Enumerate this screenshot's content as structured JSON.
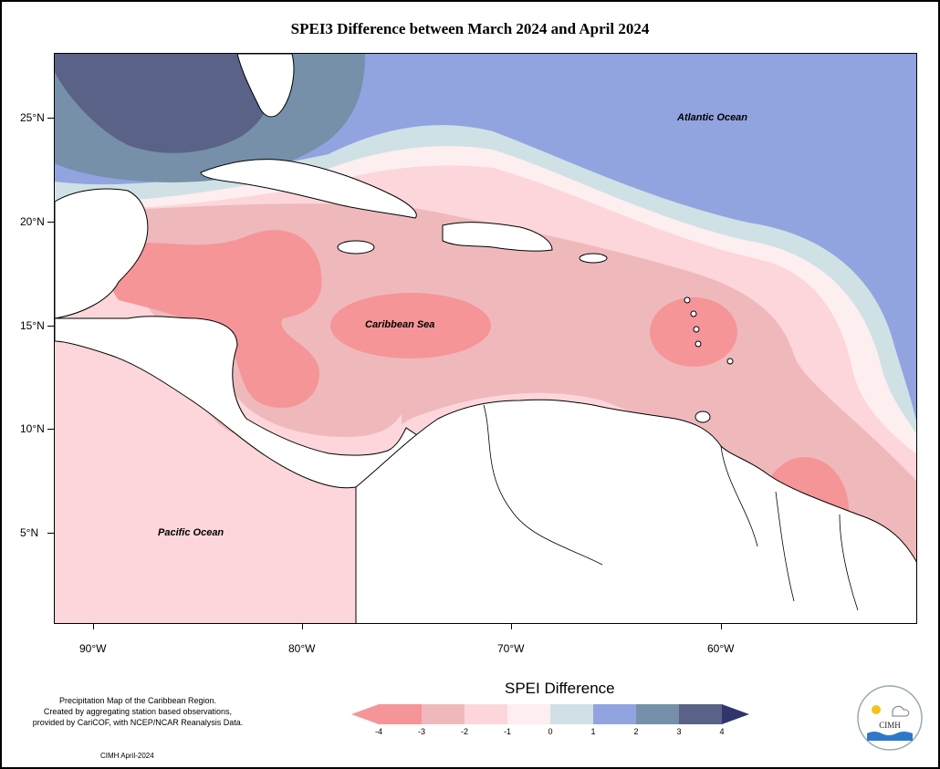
{
  "title": "SPEI3 Difference between March 2024 and April 2024",
  "latitude_labels": [
    "25°N",
    "20°N",
    "15°N",
    "10°N",
    "5°N"
  ],
  "longitude_labels": [
    "90°W",
    "80°W",
    "70°W",
    "60°W"
  ],
  "map_labels": {
    "atlantic": "Atlantic Ocean",
    "caribbean": "Caribbean Sea",
    "pacific": "Pacific Ocean"
  },
  "credit_lines": [
    "Precipitation Map of the Caribbean Region.",
    "Created by aggregating station based observations,",
    "provided by CariCOF, with NCEP/NCAR Reanalysis Data."
  ],
  "date_note": "CIMH April-2024",
  "legend": {
    "title": "SPEI Difference",
    "ticks": [
      "-4",
      "-3",
      "-2",
      "-1",
      "0",
      "1",
      "2",
      "3",
      "4"
    ],
    "bins": [
      {
        "from": -4,
        "to": -3,
        "color": "#f59597"
      },
      {
        "from": -3,
        "to": -2,
        "color": "#efb9bc"
      },
      {
        "from": -2,
        "to": -1,
        "color": "#fcd6da"
      },
      {
        "from": -1,
        "to": 0,
        "color": "#fdeef0"
      },
      {
        "from": 0,
        "to": 1,
        "color": "#cfe1e5"
      },
      {
        "from": 1,
        "to": 2,
        "color": "#92a4df"
      },
      {
        "from": 2,
        "to": 3,
        "color": "#7590a8"
      },
      {
        "from": 3,
        "to": 4,
        "color": "#5a6287"
      }
    ],
    "low_arrow_color": "#f59597",
    "high_arrow_color": "#31356b"
  },
  "logo_text": "CIMH"
}
